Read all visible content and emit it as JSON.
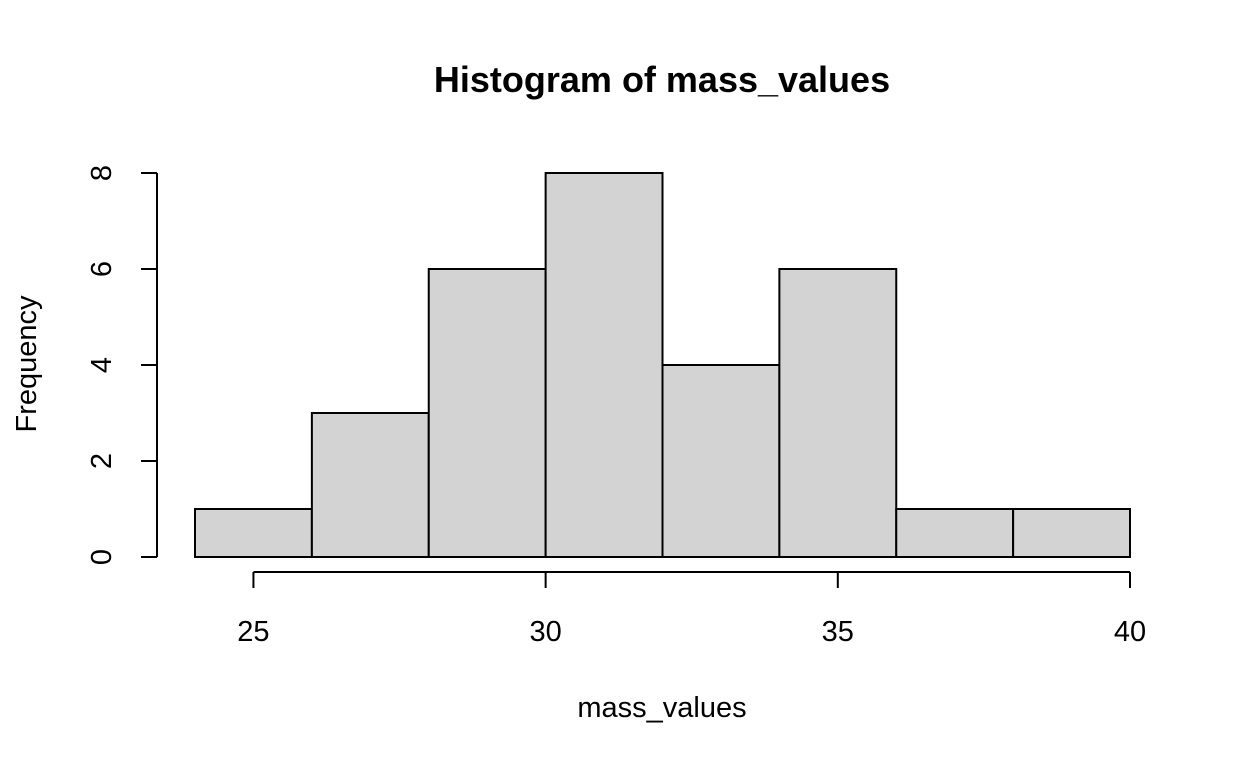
{
  "chart_data": {
    "type": "bar",
    "title": "Histogram of mass_values",
    "xlabel": "mass_values",
    "ylabel": "Frequency",
    "bins": [
      {
        "start": 24,
        "end": 26,
        "count": 1
      },
      {
        "start": 26,
        "end": 28,
        "count": 3
      },
      {
        "start": 28,
        "end": 30,
        "count": 6
      },
      {
        "start": 30,
        "end": 32,
        "count": 8
      },
      {
        "start": 32,
        "end": 34,
        "count": 4
      },
      {
        "start": 34,
        "end": 36,
        "count": 6
      },
      {
        "start": 36,
        "end": 38,
        "count": 1
      },
      {
        "start": 38,
        "end": 40,
        "count": 1
      }
    ],
    "x_ticks": [
      25,
      30,
      35,
      40
    ],
    "y_ticks": [
      0,
      2,
      4,
      6,
      8
    ],
    "xlim": [
      24,
      40
    ],
    "ylim": [
      0,
      8
    ],
    "grid": false,
    "bar_fill": "#d3d3d3",
    "bar_stroke": "#000000"
  }
}
